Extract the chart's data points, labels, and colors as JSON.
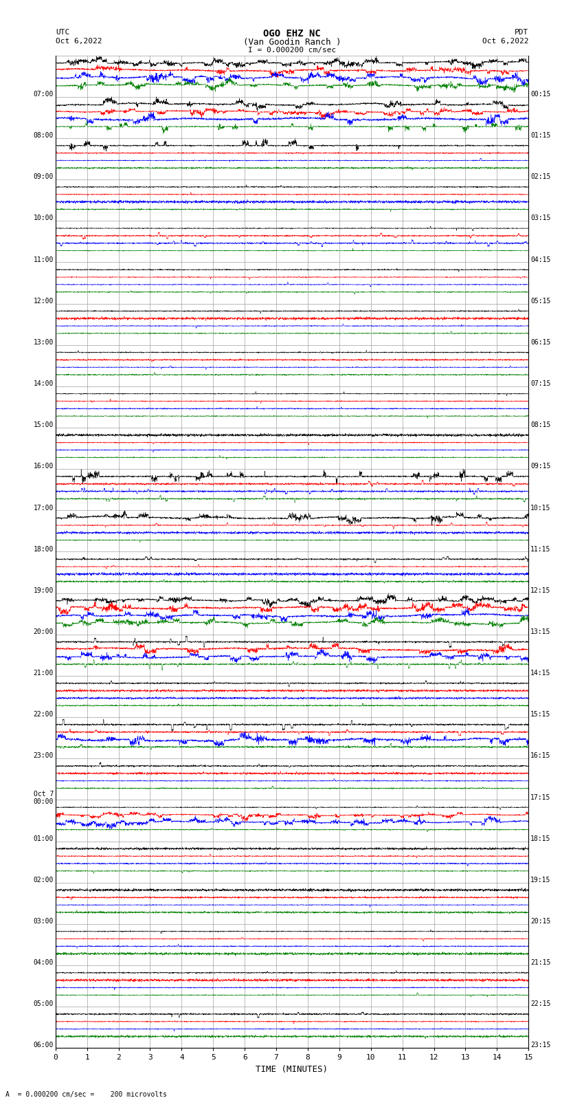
{
  "title_line1": "OGO EHZ NC",
  "title_line2": "(Van Goodin Ranch )",
  "title_line3": "I = 0.000200 cm/sec",
  "left_label_top": "UTC",
  "left_label_date": "Oct 6,2022",
  "right_label_top": "PDT",
  "right_label_date": "Oct 6,2022",
  "bottom_label": "TIME (MINUTES)",
  "footer_label": "A  = 0.000200 cm/sec =    200 microvolts",
  "xlabel_ticks": [
    0,
    1,
    2,
    3,
    4,
    5,
    6,
    7,
    8,
    9,
    10,
    11,
    12,
    13,
    14,
    15
  ],
  "left_times_utc": [
    "07:00",
    "08:00",
    "09:00",
    "10:00",
    "11:00",
    "12:00",
    "13:00",
    "14:00",
    "15:00",
    "16:00",
    "17:00",
    "18:00",
    "19:00",
    "20:00",
    "21:00",
    "22:00",
    "23:00",
    "Oct 7\n00:00",
    "01:00",
    "02:00",
    "03:00",
    "04:00",
    "05:00",
    "06:00"
  ],
  "right_times_pdt": [
    "00:15",
    "01:15",
    "02:15",
    "03:15",
    "04:15",
    "05:15",
    "06:15",
    "07:15",
    "08:15",
    "09:15",
    "10:15",
    "11:15",
    "12:15",
    "13:15",
    "14:15",
    "15:15",
    "16:15",
    "17:15",
    "18:15",
    "19:15",
    "20:15",
    "21:15",
    "22:15",
    "23:15"
  ],
  "n_rows": 24,
  "channel_colors": [
    "black",
    "red",
    "blue",
    "green"
  ],
  "bg_color": "#ffffff",
  "grid_color": "#888888",
  "figsize": [
    8.5,
    16.13
  ],
  "dpi": 100,
  "seed": 42,
  "row_activity": [
    {
      "black": 3.0,
      "red": 3.0,
      "blue": 3.0,
      "green": 2.0
    },
    {
      "black": 3.0,
      "red": 3.0,
      "blue": 2.5,
      "green": 1.5
    },
    {
      "black": 1.5,
      "red": 0.3,
      "blue": 0.3,
      "green": 0.3
    },
    {
      "black": 0.3,
      "red": 0.3,
      "blue": 0.3,
      "green": 0.3
    },
    {
      "black": 0.3,
      "red": 0.5,
      "blue": 0.5,
      "green": 0.3
    },
    {
      "black": 0.3,
      "red": 0.3,
      "blue": 0.3,
      "green": 0.3
    },
    {
      "black": 0.3,
      "red": 0.3,
      "blue": 0.3,
      "green": 0.3
    },
    {
      "black": 0.3,
      "red": 0.3,
      "blue": 0.3,
      "green": 0.3
    },
    {
      "black": 0.3,
      "red": 0.3,
      "blue": 0.3,
      "green": 0.3
    },
    {
      "black": 0.3,
      "red": 0.3,
      "blue": 0.3,
      "green": 0.3
    },
    {
      "black": 1.0,
      "red": 0.5,
      "blue": 0.5,
      "green": 0.5
    },
    {
      "black": 2.5,
      "red": 0.5,
      "blue": 0.3,
      "green": 0.3
    },
    {
      "black": 0.5,
      "red": 0.3,
      "blue": 0.3,
      "green": 0.3
    },
    {
      "black": 2.0,
      "red": 3.0,
      "blue": 3.0,
      "green": 2.5
    },
    {
      "black": 0.8,
      "red": 2.5,
      "blue": 2.0,
      "green": 0.8
    },
    {
      "black": 0.5,
      "red": 0.3,
      "blue": 0.3,
      "green": 0.3
    },
    {
      "black": 0.8,
      "red": 0.5,
      "blue": 2.5,
      "green": 0.5
    },
    {
      "black": 0.5,
      "red": 0.3,
      "blue": 0.3,
      "green": 0.3
    },
    {
      "black": 0.3,
      "red": 2.0,
      "blue": 2.5,
      "green": 0.3
    },
    {
      "black": 0.3,
      "red": 0.3,
      "blue": 0.3,
      "green": 0.3
    },
    {
      "black": 0.3,
      "red": 0.3,
      "blue": 0.3,
      "green": 0.3
    },
    {
      "black": 0.3,
      "red": 0.3,
      "blue": 0.3,
      "green": 0.3
    },
    {
      "black": 0.3,
      "red": 0.3,
      "blue": 0.3,
      "green": 0.3
    },
    {
      "black": 0.5,
      "red": 0.3,
      "blue": 0.3,
      "green": 0.3
    }
  ]
}
